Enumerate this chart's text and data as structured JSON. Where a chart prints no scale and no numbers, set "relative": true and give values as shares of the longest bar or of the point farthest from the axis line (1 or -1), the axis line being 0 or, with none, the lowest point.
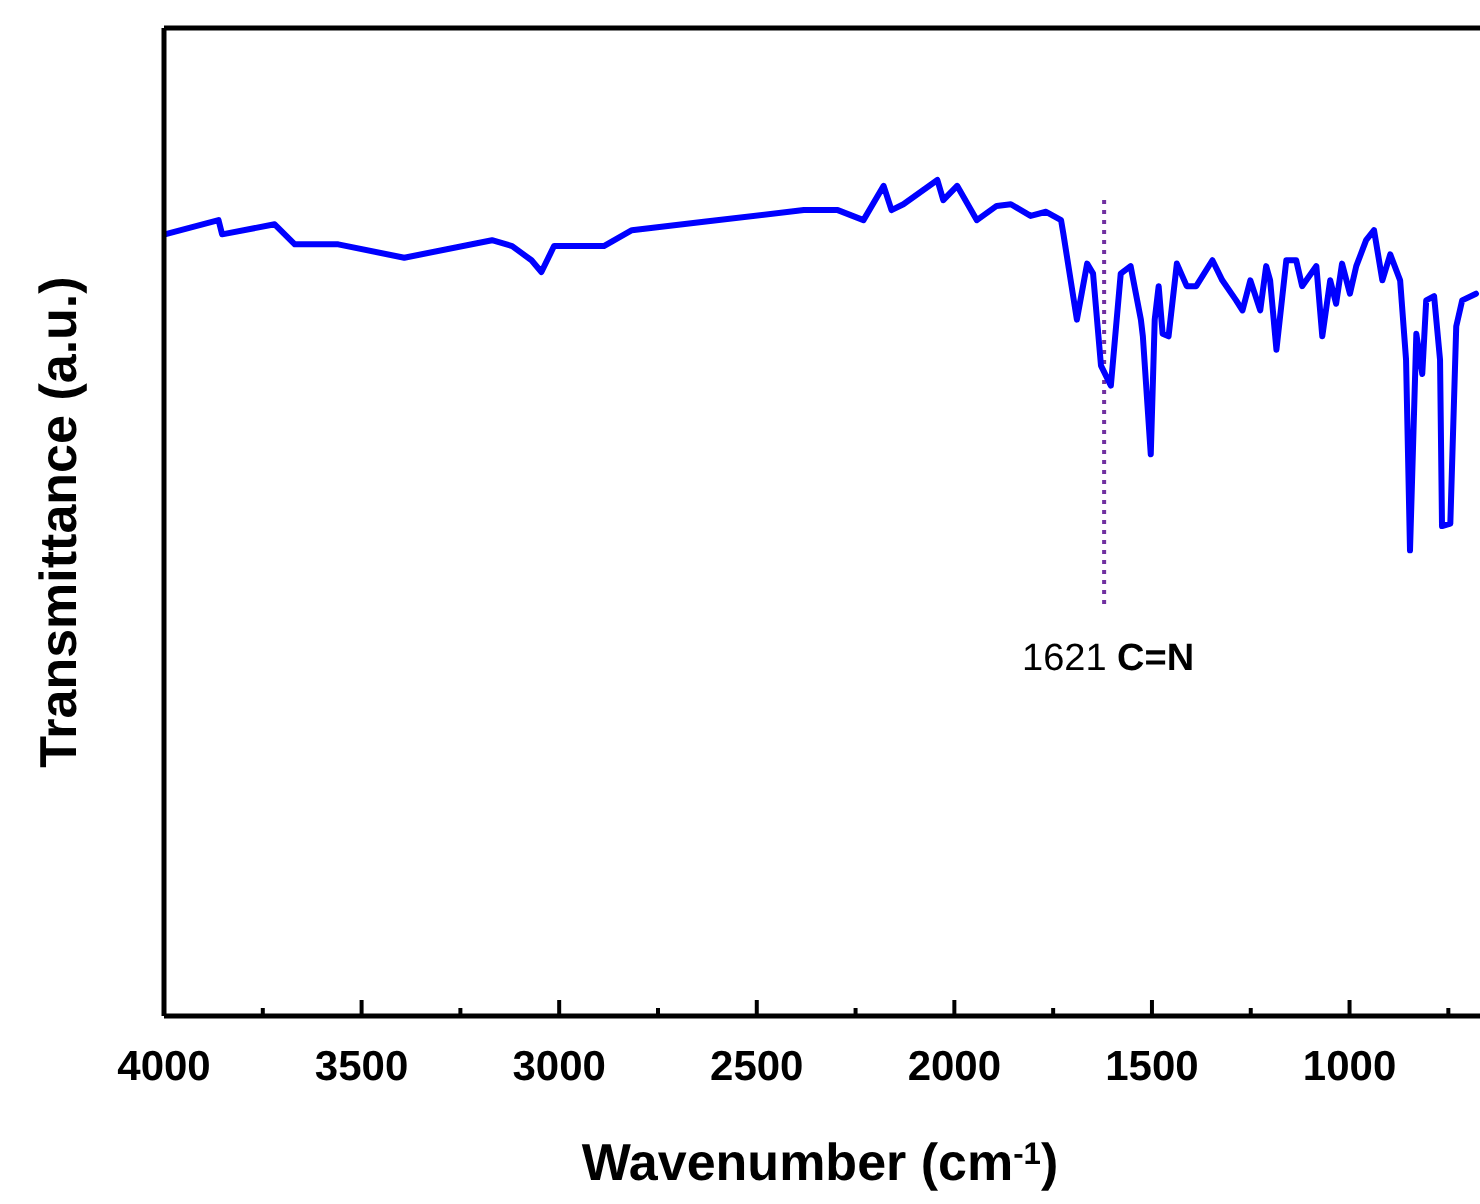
{
  "chart_data": {
    "type": "line",
    "relative": true,
    "xlabel": "Wavenumber (cm$^{-1}$)",
    "ylabel": "Transmittance (a.u.)",
    "xlim": [
      4000,
      680
    ],
    "xticks": [
      4000,
      {
        "value": 3750,
        "label": null
      },
      3500,
      {
        "value": 3250,
        "label": null
      },
      3000,
      {
        "value": 2750,
        "label": null
      },
      2500,
      {
        "value": 2250,
        "label": null
      },
      2000,
      {
        "value": 1750,
        "label": null
      },
      1500,
      {
        "value": 1250,
        "label": null
      },
      1000,
      {
        "value": 750,
        "label": null
      }
    ],
    "grid": false,
    "marker": "none",
    "line_style": "solid",
    "ref_lines": [
      {
        "axis": "x",
        "value": 1621,
        "label": "1621 C=N",
        "color": "#7030a0",
        "line_style": "dotted"
      }
    ],
    "series": [
      {
        "color": "#0000ff",
        "x": [
          3998,
          3862,
          3853,
          3720,
          3669,
          3559,
          3392,
          3170,
          3119,
          3070,
          3045,
          3013,
          2887,
          2816,
          2634,
          2381,
          2295,
          2230,
          2179,
          2159,
          2129,
          2043,
          2028,
          1993,
          1943,
          1893,
          1857,
          1807,
          1768,
          1730,
          1724,
          1690,
          1664,
          1649,
          1629,
          1604,
          1579,
          1554,
          1528,
          1523,
          1503,
          1493,
          1483,
          1473,
          1458,
          1437,
          1412,
          1388,
          1347,
          1322,
          1287,
          1271,
          1251,
          1226,
          1211,
          1201,
          1185,
          1160,
          1135,
          1120,
          1084,
          1069,
          1049,
          1034,
          1019,
          999,
          983,
          958,
          938,
          917,
          897,
          872,
          857,
          847,
          831,
          816,
          806,
          786,
          771,
          766,
          745,
          730,
          715,
          680
        ],
        "values": [
          0.935,
          0.952,
          0.935,
          0.947,
          0.923,
          0.923,
          0.907,
          0.928,
          0.921,
          0.904,
          0.89,
          0.921,
          0.921,
          0.94,
          0.95,
          0.964,
          0.964,
          0.952,
          0.993,
          0.964,
          0.971,
          1,
          0.976,
          0.993,
          0.952,
          0.969,
          0.971,
          0.957,
          0.962,
          0.952,
          0.935,
          0.833,
          0.9,
          0.888,
          0.778,
          0.754,
          0.888,
          0.897,
          0.833,
          0.813,
          0.672,
          0.833,
          0.873,
          0.816,
          0.813,
          0.9,
          0.873,
          0.873,
          0.904,
          0.88,
          0.856,
          0.844,
          0.88,
          0.844,
          0.897,
          0.88,
          0.797,
          0.904,
          0.904,
          0.873,
          0.897,
          0.813,
          0.88,
          0.852,
          0.9,
          0.864,
          0.897,
          0.928,
          0.94,
          0.88,
          0.911,
          0.88,
          0.785,
          0.557,
          0.816,
          0.768,
          0.856,
          0.861,
          0.785,
          0.586,
          0.589,
          0.825,
          0.856,
          0.864
        ]
      }
    ]
  }
}
